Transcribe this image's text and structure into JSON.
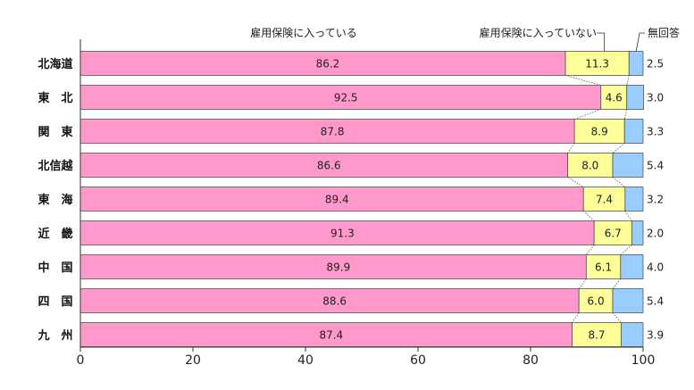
{
  "chart_data": {
    "type": "bar",
    "orientation": "horizontal",
    "stacked": true,
    "categories": [
      "北海道",
      "東　北",
      "関　東",
      "北信越",
      "東　海",
      "近　畿",
      "中　国",
      "四　国",
      "九　州"
    ],
    "series": [
      {
        "name": "雇用保険に入っている",
        "color": "#ff99cc",
        "values": [
          86.2,
          92.5,
          87.8,
          86.6,
          89.4,
          91.3,
          89.9,
          88.6,
          87.4
        ]
      },
      {
        "name": "雇用保険に入っていない",
        "color": "#ffff99",
        "values": [
          11.3,
          4.6,
          8.9,
          8.0,
          7.4,
          6.7,
          6.1,
          6.0,
          8.7
        ]
      },
      {
        "name": "無回答",
        "color": "#99ccff",
        "values": [
          2.5,
          3.0,
          3.3,
          5.4,
          3.2,
          2.0,
          4.0,
          5.4,
          3.9
        ]
      }
    ],
    "xlim": [
      0,
      100
    ],
    "xticks": [
      0,
      20,
      40,
      60,
      80,
      100
    ],
    "title": "",
    "xlabel": "",
    "ylabel": "",
    "grid": false,
    "legend": "top, labels above bars with leader lines",
    "connector_lines": "dotted lines linking stack boundaries between bars"
  }
}
